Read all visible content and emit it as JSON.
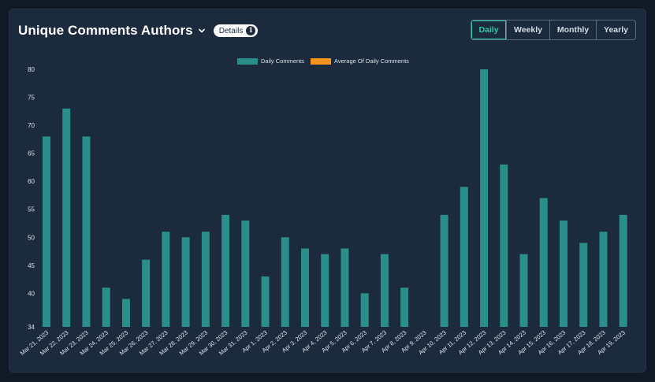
{
  "header": {
    "title": "Unique Comments Authors",
    "details_label": "Details",
    "info_glyph": "i"
  },
  "period_tabs": [
    {
      "label": "Daily",
      "active": true
    },
    {
      "label": "Weekly",
      "active": false
    },
    {
      "label": "Monthly",
      "active": false
    },
    {
      "label": "Yearly",
      "active": false
    }
  ],
  "colors": {
    "bar": "#2a8f8a",
    "average": "#f7931e",
    "accent": "#2fc9a8"
  },
  "chart_data": {
    "type": "bar",
    "title": "",
    "xlabel": "",
    "ylabel": "",
    "ylim": [
      34,
      80
    ],
    "yticks": [
      34,
      40,
      45,
      50,
      55,
      60,
      65,
      70,
      75,
      80
    ],
    "legend": [
      {
        "name": "Daily Comments",
        "color": "#2a8f8a"
      },
      {
        "name": "Average Of Daily Comments",
        "color": "#f7931e"
      }
    ],
    "legend_position": "top-center",
    "categories": [
      "Mar 21, 2023",
      "Mar 22, 2023",
      "Mar 23, 2023",
      "Mar 24, 2023",
      "Mar 25, 2023",
      "Mar 26, 2023",
      "Mar 27, 2023",
      "Mar 28, 2023",
      "Mar 29, 2023",
      "Mar 30, 2023",
      "Mar 31, 2023",
      "Apr 1, 2023",
      "Apr 2, 2023",
      "Apr 3, 2023",
      "Apr 4, 2023",
      "Apr 5, 2023",
      "Apr 6, 2023",
      "Apr 7, 2023",
      "Apr 8, 2023",
      "Apr 9, 2023",
      "Apr 10, 2023",
      "Apr 11, 2023",
      "Apr 12, 2023",
      "Apr 13, 2023",
      "Apr 14, 2023",
      "Apr 15, 2023",
      "Apr 16, 2023",
      "Apr 17, 2023",
      "Apr 18, 2023",
      "Apr 19, 2023"
    ],
    "series": [
      {
        "name": "Daily Comments",
        "values": [
          68,
          73,
          68,
          41,
          39,
          46,
          51,
          50,
          51,
          54,
          53,
          43,
          50,
          48,
          47,
          48,
          40,
          47,
          41,
          null,
          54,
          59,
          80,
          63,
          47,
          57,
          53,
          49,
          51,
          54
        ]
      }
    ]
  }
}
